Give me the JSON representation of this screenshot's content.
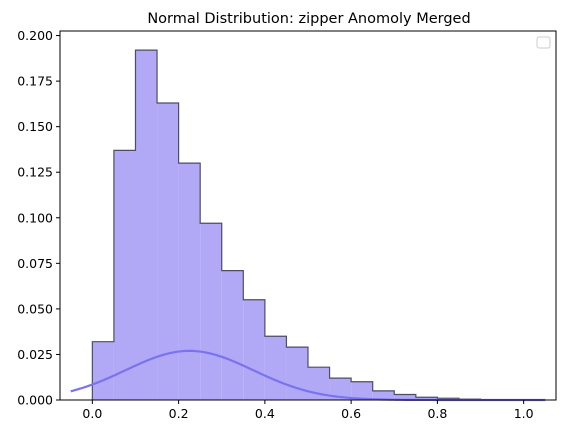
{
  "chart_data": {
    "type": "histogram",
    "title": "Normal Distribution: zipper Anomoly Merged",
    "xlabel": "",
    "ylabel": "",
    "xlim": [
      -0.075,
      1.075
    ],
    "ylim": [
      0,
      0.2025
    ],
    "xticks": [
      {
        "value": 0.0,
        "label": "0.0"
      },
      {
        "value": 0.2,
        "label": "0.2"
      },
      {
        "value": 0.4,
        "label": "0.4"
      },
      {
        "value": 0.6,
        "label": "0.6"
      },
      {
        "value": 0.8,
        "label": "0.8"
      },
      {
        "value": 1.0,
        "label": "1.0"
      }
    ],
    "yticks": [
      {
        "value": 0.0,
        "label": "0.000"
      },
      {
        "value": 0.025,
        "label": "0.025"
      },
      {
        "value": 0.05,
        "label": "0.050"
      },
      {
        "value": 0.075,
        "label": "0.075"
      },
      {
        "value": 0.1,
        "label": "0.100"
      },
      {
        "value": 0.125,
        "label": "0.125"
      },
      {
        "value": 0.15,
        "label": "0.150"
      },
      {
        "value": 0.175,
        "label": "0.175"
      },
      {
        "value": 0.2,
        "label": "0.200"
      }
    ],
    "bin_edges": [
      0.0,
      0.05,
      0.1,
      0.15,
      0.2,
      0.25,
      0.3,
      0.35,
      0.4,
      0.45,
      0.5,
      0.55,
      0.6,
      0.65,
      0.7,
      0.75,
      0.8,
      0.85,
      0.9,
      0.95
    ],
    "bin_values": [
      0.032,
      0.137,
      0.192,
      0.163,
      0.13,
      0.097,
      0.071,
      0.055,
      0.035,
      0.029,
      0.018,
      0.012,
      0.01,
      0.005,
      0.003,
      0.0015,
      0.001,
      0.0005,
      0.0
    ],
    "normal_curve": {
      "mean": 0.225,
      "std": 0.148,
      "scale": 0.01,
      "x_range": [
        -0.05,
        1.05
      ]
    },
    "legend": {
      "placement": "top-right",
      "entries": []
    },
    "colors": {
      "bar_fill": "#b1a9f5",
      "bar_edge": "#4d4d66",
      "curve": "#7b72ee"
    }
  }
}
